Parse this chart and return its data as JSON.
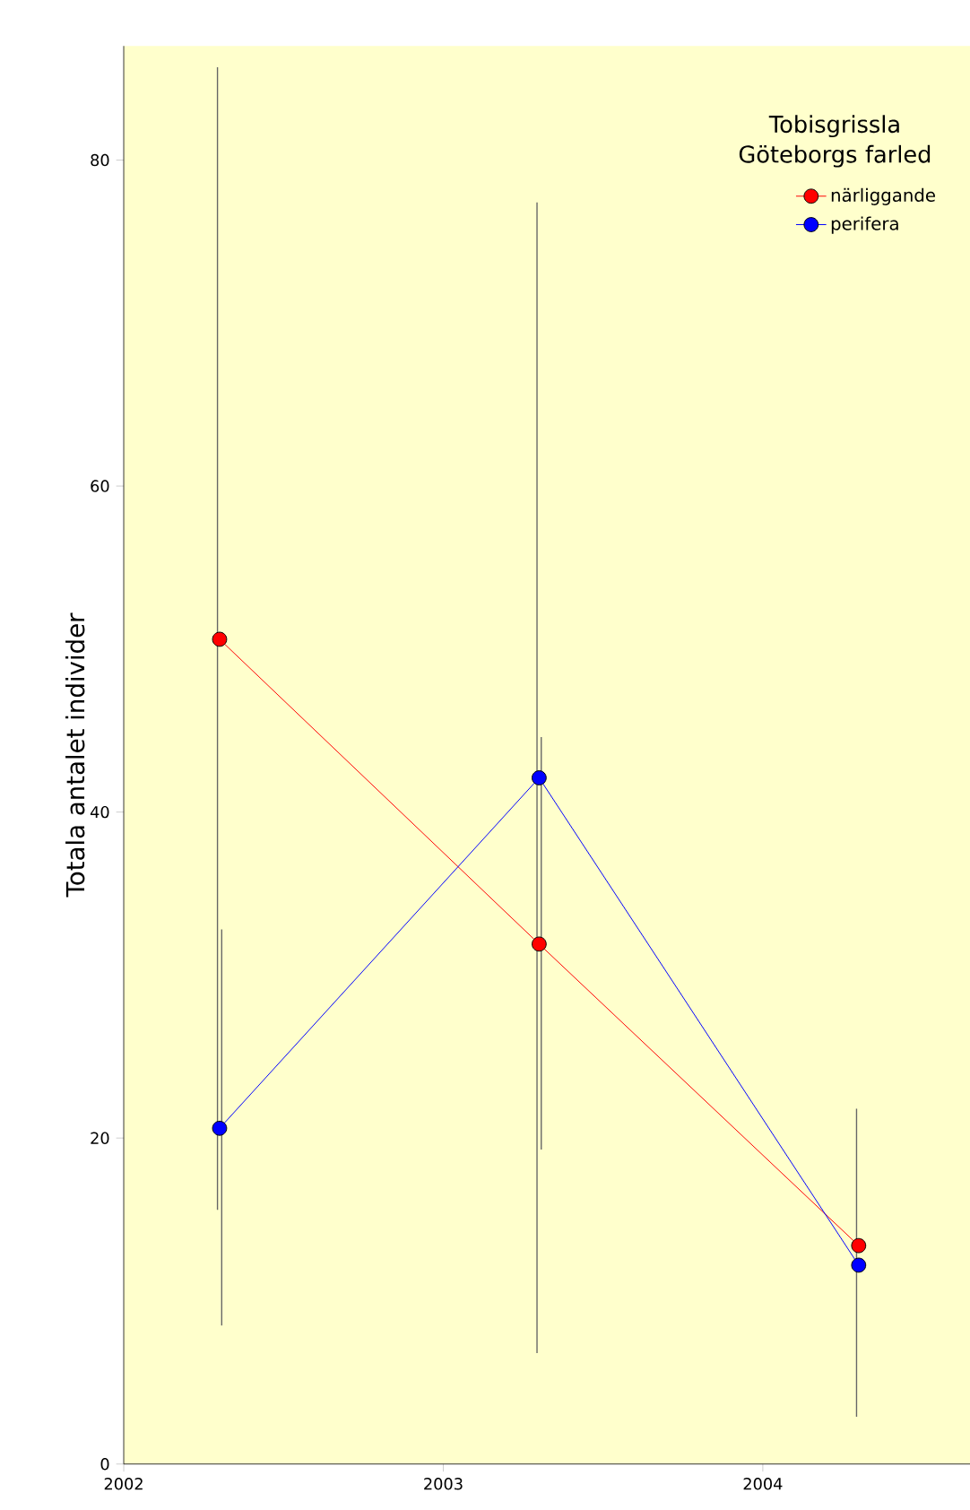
{
  "chart_data": {
    "type": "line",
    "legend_title": "Tobisgrissla Göteborgs farled",
    "ylabel": "Totala antalet individer",
    "xlim": [
      2002,
      2004.65
    ],
    "xticks": [
      2002,
      2003,
      2004
    ],
    "ylim": [
      0,
      87
    ],
    "yticks": [
      0,
      20,
      40,
      60,
      80
    ],
    "marker": "circle",
    "legend": "top right",
    "grid": false,
    "series": [
      {
        "name": "närliggande",
        "color": "#ff0000",
        "x": [
          2002.3,
          2003.3,
          2004.3
        ],
        "values": [
          50.6,
          31.9,
          13.4
        ],
        "errors": [
          [
            15.6,
            85.7
          ],
          [
            6.8,
            77.4
          ],
          [
            2.9,
            21.8
          ]
        ]
      },
      {
        "name": "perifera",
        "color": "#0000ff",
        "x": [
          2002.3,
          2003.3,
          2004.3
        ],
        "values": [
          20.6,
          42.1,
          12.2
        ],
        "errors": [
          [
            8.5,
            32.8
          ],
          [
            19.3,
            44.6
          ],
          null
        ]
      }
    ]
  }
}
